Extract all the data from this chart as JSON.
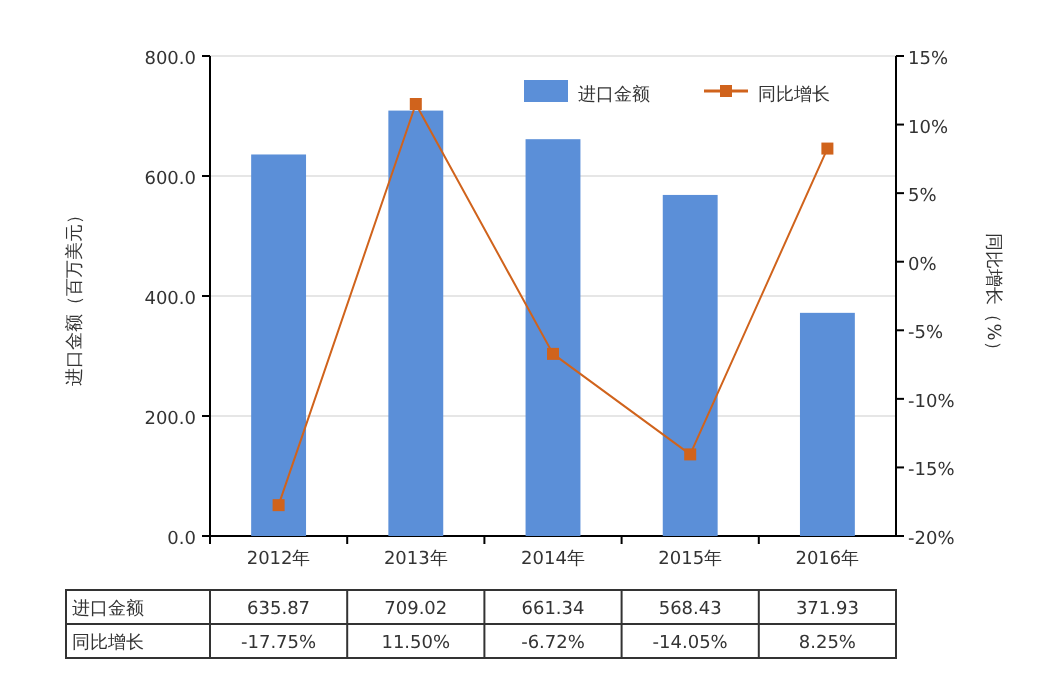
{
  "chart_data": {
    "type": "bar",
    "categories": [
      "2012年",
      "2013年",
      "2014年",
      "2015年",
      "2016年"
    ],
    "ylabel": "进口金额（百万美元）",
    "y2label": "同比增长（%）",
    "series": [
      {
        "name": "进口金额",
        "color": "#5b8fd8",
        "values": [
          635.87,
          709.02,
          661.34,
          568.43,
          371.93
        ],
        "value_labels": [
          "635.87",
          "709.02",
          "661.34",
          "568.43",
          "371.93"
        ]
      },
      {
        "name": "同比增长",
        "type": "line",
        "axis": "y2",
        "color": "#d0631c",
        "marker": "square",
        "values": [
          -17.75,
          11.5,
          -6.72,
          -14.05,
          8.25
        ],
        "value_labels": [
          "-17.75%",
          "11.50%",
          "-6.72%",
          "-14.05%",
          "8.25%"
        ]
      }
    ],
    "ylim": [
      0,
      800
    ],
    "yticks": [
      {
        "value": 0,
        "label": "0.0"
      },
      {
        "value": 200,
        "label": "200.0"
      },
      {
        "value": 400,
        "label": "400.0"
      },
      {
        "value": 600,
        "label": "600.0"
      },
      {
        "value": 800,
        "label": "800.0"
      }
    ],
    "y2lim": [
      -20,
      15
    ],
    "y2ticks": [
      {
        "value": -20,
        "label": "-20%"
      },
      {
        "value": -15,
        "label": "-15%"
      },
      {
        "value": -10,
        "label": "-10%"
      },
      {
        "value": -5,
        "label": "-5%"
      },
      {
        "value": 0,
        "label": "0%"
      },
      {
        "value": 5,
        "label": "5%"
      },
      {
        "value": 10,
        "label": "10%"
      },
      {
        "value": 15,
        "label": "15%"
      }
    ],
    "grid": "y",
    "legend": "top right"
  }
}
